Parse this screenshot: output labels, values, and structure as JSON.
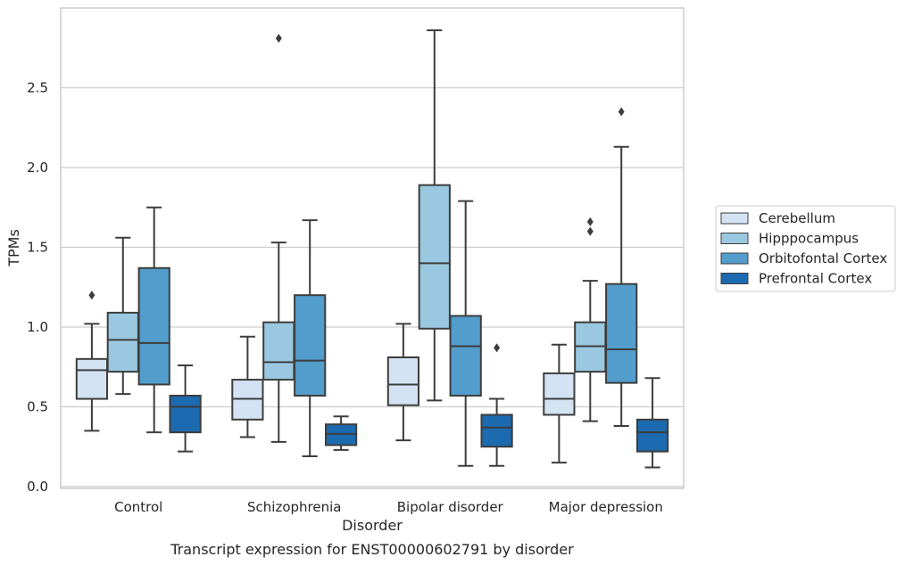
{
  "chart_data": {
    "type": "boxplot",
    "title": "",
    "caption": "Transcript expression for ENST00000602791 by disorder",
    "xlabel": "Disorder",
    "ylabel": "TPMs",
    "ylim": [
      0,
      2.95
    ],
    "yticks": [
      0.0,
      0.5,
      1.0,
      1.5,
      2.0,
      2.5
    ],
    "ytick_labels": [
      "0.0",
      "0.5",
      "1.0",
      "1.5",
      "2.0",
      "2.5"
    ],
    "grid": "horizontal",
    "legend_position": "right",
    "categories": [
      "Control",
      "Schizophrenia",
      "Bipolar disorder",
      "Major depression"
    ],
    "series": [
      {
        "name": "Cerebellum",
        "color": "#d3e3f3",
        "boxes": [
          {
            "whislo": 0.35,
            "q1": 0.55,
            "med": 0.73,
            "q3": 0.8,
            "whishi": 1.02,
            "fliers": [
              1.2
            ]
          },
          {
            "whislo": 0.31,
            "q1": 0.42,
            "med": 0.55,
            "q3": 0.67,
            "whishi": 0.94,
            "fliers": []
          },
          {
            "whislo": 0.29,
            "q1": 0.51,
            "med": 0.64,
            "q3": 0.81,
            "whishi": 1.02,
            "fliers": []
          },
          {
            "whislo": 0.15,
            "q1": 0.45,
            "med": 0.55,
            "q3": 0.71,
            "whishi": 0.89,
            "fliers": []
          }
        ]
      },
      {
        "name": "Hipppocampus",
        "color": "#9ac8e0",
        "boxes": [
          {
            "whislo": 0.58,
            "q1": 0.72,
            "med": 0.92,
            "q3": 1.09,
            "whishi": 1.56,
            "fliers": []
          },
          {
            "whislo": 0.28,
            "q1": 0.67,
            "med": 0.78,
            "q3": 1.03,
            "whishi": 1.53,
            "fliers": [
              2.81
            ]
          },
          {
            "whislo": 0.54,
            "q1": 0.99,
            "med": 1.4,
            "q3": 1.89,
            "whishi": 2.86,
            "fliers": []
          },
          {
            "whislo": 0.41,
            "q1": 0.72,
            "med": 0.88,
            "q3": 1.03,
            "whishi": 1.29,
            "fliers": [
              1.6,
              1.66
            ]
          }
        ]
      },
      {
        "name": "Orbitofontal Cortex",
        "color": "#529dcc",
        "boxes": [
          {
            "whislo": 0.34,
            "q1": 0.64,
            "med": 0.9,
            "q3": 1.37,
            "whishi": 1.75,
            "fliers": []
          },
          {
            "whislo": 0.19,
            "q1": 0.57,
            "med": 0.79,
            "q3": 1.2,
            "whishi": 1.67,
            "fliers": []
          },
          {
            "whislo": 0.13,
            "q1": 0.57,
            "med": 0.88,
            "q3": 1.07,
            "whishi": 1.79,
            "fliers": []
          },
          {
            "whislo": 0.38,
            "q1": 0.65,
            "med": 0.86,
            "q3": 1.27,
            "whishi": 2.13,
            "fliers": [
              2.35
            ]
          }
        ]
      },
      {
        "name": "Prefrontal Cortex",
        "color": "#1c6aaf",
        "boxes": [
          {
            "whislo": 0.22,
            "q1": 0.34,
            "med": 0.5,
            "q3": 0.57,
            "whishi": 0.76,
            "fliers": []
          },
          {
            "whislo": 0.23,
            "q1": 0.26,
            "med": 0.33,
            "q3": 0.39,
            "whishi": 0.44,
            "fliers": []
          },
          {
            "whislo": 0.13,
            "q1": 0.25,
            "med": 0.37,
            "q3": 0.45,
            "whishi": 0.55,
            "fliers": [
              0.87
            ]
          },
          {
            "whislo": 0.12,
            "q1": 0.22,
            "med": 0.34,
            "q3": 0.42,
            "whishi": 0.68,
            "fliers": []
          }
        ]
      }
    ]
  }
}
